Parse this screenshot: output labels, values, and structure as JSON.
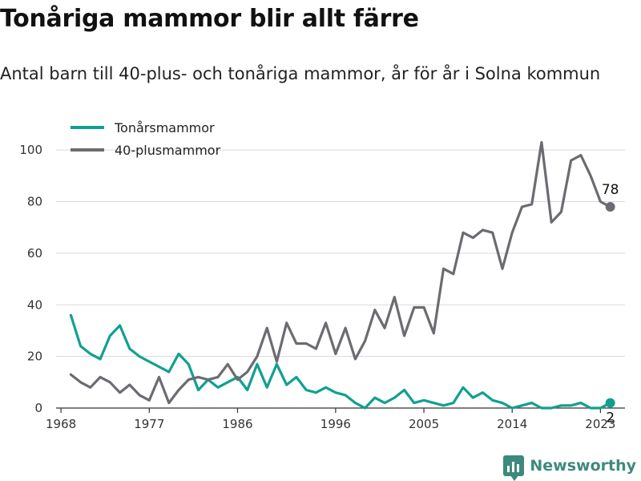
{
  "title": "Tonåriga mammor blir allt färre",
  "subtitle": "Antal barn till 40-plus- och tonåriga mammor, år för år i Solna kommun",
  "brand": {
    "name": "Newsworthy",
    "icon": "bar-chart-logo-icon"
  },
  "colors": {
    "teen": "#11a090",
    "plus40": "#6d6b72",
    "grid": "#d9d9d9",
    "axis": "#333333"
  },
  "chart_data": {
    "type": "line",
    "x": [
      1969,
      1970,
      1971,
      1972,
      1973,
      1974,
      1975,
      1976,
      1977,
      1978,
      1979,
      1980,
      1981,
      1982,
      1983,
      1984,
      1985,
      1986,
      1987,
      1988,
      1989,
      1990,
      1991,
      1992,
      1993,
      1994,
      1995,
      1996,
      1997,
      1998,
      1999,
      2000,
      2001,
      2002,
      2003,
      2004,
      2005,
      2006,
      2007,
      2008,
      2009,
      2010,
      2011,
      2012,
      2013,
      2014,
      2015,
      2016,
      2017,
      2018,
      2019,
      2020,
      2021,
      2022,
      2023,
      2024
    ],
    "series": [
      {
        "name": "Tonårsmammor",
        "color": "#11a090",
        "values": [
          36,
          24,
          21,
          19,
          28,
          32,
          23,
          20,
          18,
          16,
          14,
          21,
          17,
          7,
          11,
          8,
          10,
          12,
          7,
          17,
          8,
          17,
          9,
          12,
          7,
          6,
          8,
          6,
          5,
          2,
          0,
          4,
          2,
          4,
          7,
          2,
          3,
          2,
          1,
          2,
          8,
          4,
          6,
          3,
          2,
          0,
          1,
          2,
          0,
          0,
          1,
          1,
          2,
          0,
          0,
          2
        ]
      },
      {
        "name": "40-plusmammor",
        "color": "#6d6b72",
        "values": [
          13,
          10,
          8,
          12,
          10,
          6,
          9,
          5,
          3,
          12,
          2,
          7,
          11,
          12,
          11,
          12,
          17,
          11,
          14,
          20,
          31,
          18,
          33,
          25,
          25,
          23,
          33,
          21,
          31,
          19,
          26,
          38,
          31,
          43,
          28,
          39,
          39,
          29,
          54,
          52,
          68,
          66,
          69,
          68,
          54,
          68,
          78,
          79,
          103,
          72,
          76,
          96,
          98,
          90,
          80,
          78
        ]
      }
    ],
    "end_labels": {
      "Tonårsmammor": "2",
      "40-plusmammor": "78"
    },
    "x_ticks": [
      1968,
      1977,
      1986,
      1996,
      2005,
      2014,
      2023
    ],
    "x_tick_labels": [
      "1968",
      "1977",
      "1986",
      "1996",
      "2005",
      "2014",
      "2023"
    ],
    "y_ticks": [
      0,
      20,
      40,
      60,
      80,
      100
    ],
    "y_tick_labels": [
      "0",
      "20",
      "40",
      "60",
      "80",
      "100"
    ],
    "xlim": [
      1967.5,
      2025.5
    ],
    "ylim": [
      0,
      110
    ],
    "grid": true,
    "legend_position": "top-left",
    "xlabel": "",
    "ylabel": ""
  }
}
